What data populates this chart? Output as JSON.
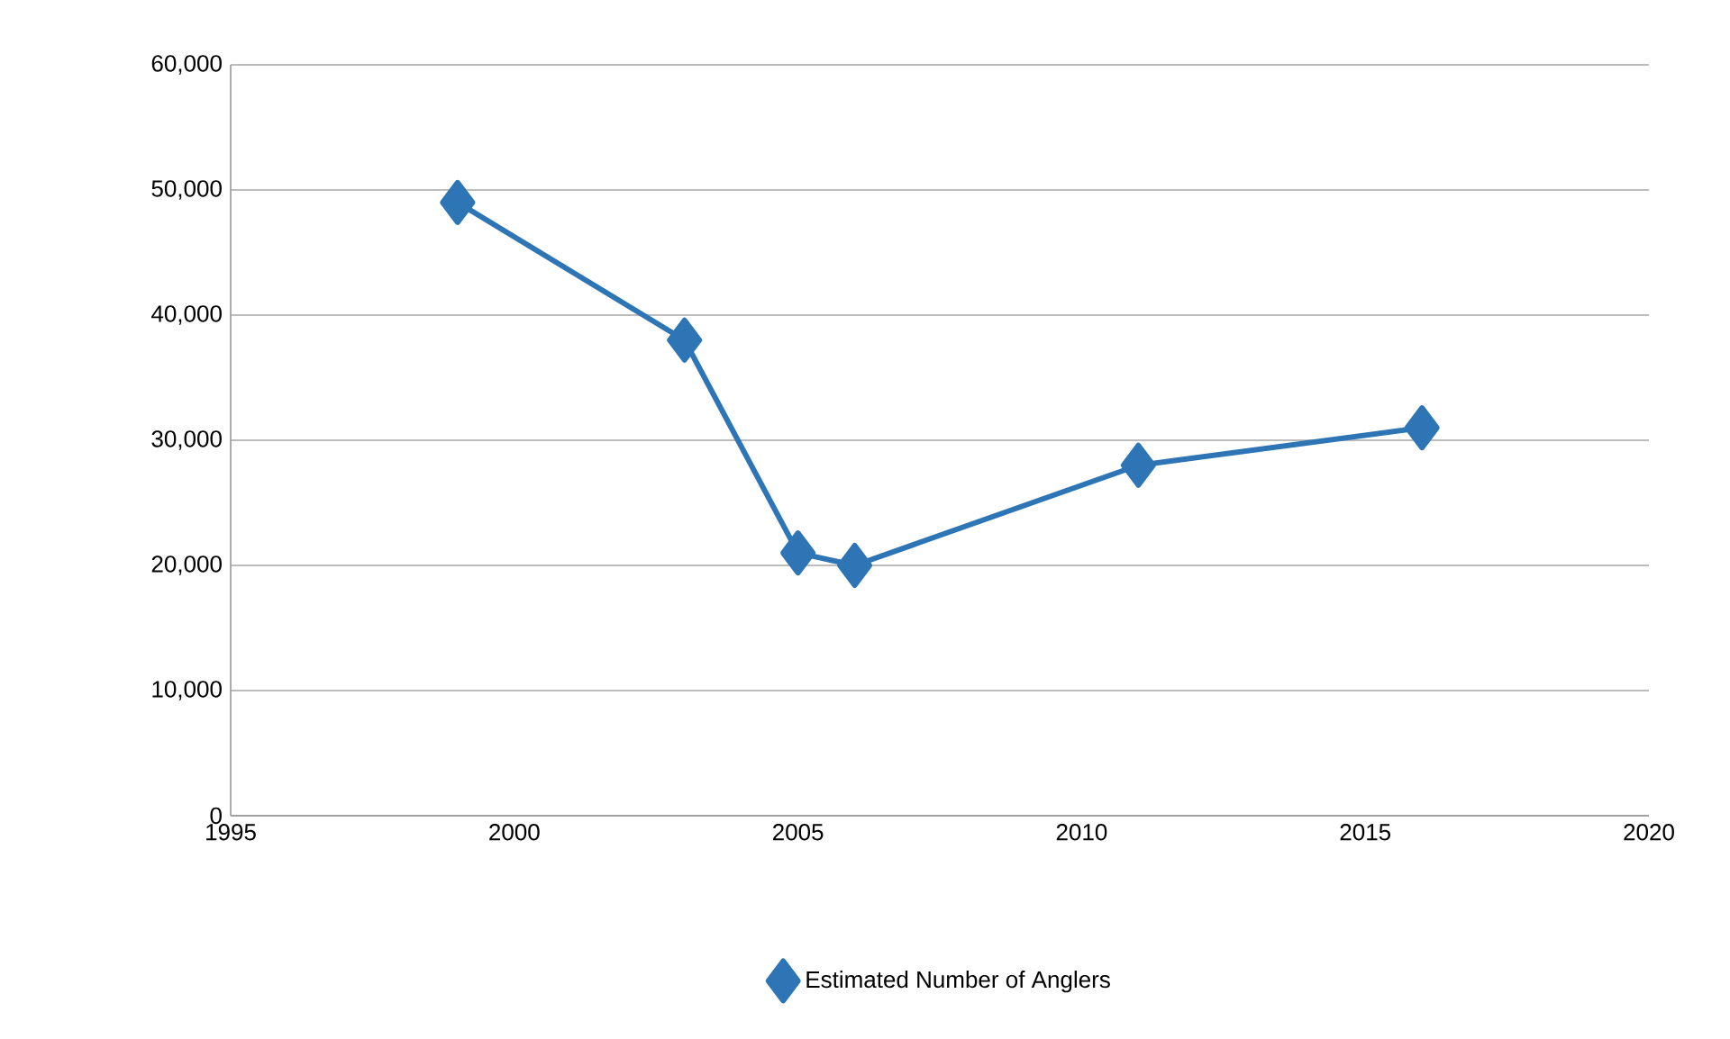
{
  "chart_data": {
    "type": "line",
    "x": [
      1999,
      2003,
      2005,
      2006,
      2011,
      2016
    ],
    "series": [
      {
        "name": "Estimated Number of Anglers",
        "color": "#2e75b6",
        "values": [
          49000,
          38000,
          21000,
          20000,
          28000,
          31000
        ]
      }
    ],
    "xlim": [
      1995,
      2020
    ],
    "xticks": [
      1995,
      2000,
      2005,
      2010,
      2015,
      2020
    ],
    "ylim": [
      0,
      60000
    ],
    "yticks": [
      {
        "value": 0,
        "label": "0"
      },
      {
        "value": 10000,
        "label": "10,000"
      },
      {
        "value": 20000,
        "label": "20,000"
      },
      {
        "value": 30000,
        "label": "30,000"
      },
      {
        "value": 40000,
        "label": "40,000"
      },
      {
        "value": 50000,
        "label": "50,000"
      },
      {
        "value": 60000,
        "label": "60,000"
      }
    ],
    "grid": "y",
    "legend": "bottom",
    "marker": "diamond",
    "line_style": "solid"
  }
}
